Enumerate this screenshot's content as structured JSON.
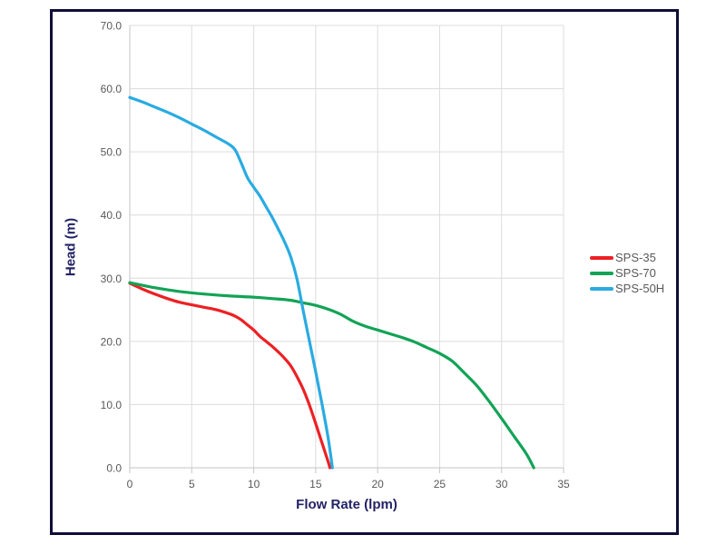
{
  "chart_data": {
    "type": "line",
    "title": "",
    "xlabel": "Flow Rate (lpm)",
    "ylabel": "Head (m)",
    "xlim": [
      0,
      35
    ],
    "ylim": [
      0,
      70
    ],
    "grid": true,
    "legend_position": "right-center",
    "x_ticks": [
      0,
      5,
      10,
      15,
      20,
      25,
      30,
      35
    ],
    "x_tick_labels": [
      "0",
      "5",
      "10",
      "15",
      "20",
      "25",
      "30",
      "35"
    ],
    "y_ticks": [
      0,
      10,
      20,
      30,
      40,
      50,
      60,
      70
    ],
    "y_tick_labels": [
      "0.0",
      "10.0",
      "20.0",
      "30.0",
      "40.0",
      "50.0",
      "60.0",
      "70.0"
    ],
    "series": [
      {
        "name": "SPS-35",
        "color": "#ed2024",
        "points": [
          [
            0,
            29.2
          ],
          [
            1,
            28.3
          ],
          [
            2,
            27.5
          ],
          [
            3,
            26.8
          ],
          [
            4,
            26.2
          ],
          [
            5,
            25.8
          ],
          [
            6,
            25.4
          ],
          [
            7,
            25.0
          ],
          [
            8,
            24.4
          ],
          [
            8.5,
            24.0
          ],
          [
            9,
            23.4
          ],
          [
            9.5,
            22.6
          ],
          [
            10,
            21.8
          ],
          [
            10.5,
            20.8
          ],
          [
            11,
            20.0
          ],
          [
            11.5,
            19.2
          ],
          [
            12,
            18.3
          ],
          [
            12.5,
            17.3
          ],
          [
            13,
            16.1
          ],
          [
            13.5,
            14.4
          ],
          [
            14,
            12.4
          ],
          [
            14.5,
            9.9
          ],
          [
            15,
            7.0
          ],
          [
            15.5,
            4.0
          ],
          [
            16,
            1.0
          ],
          [
            16.15,
            0
          ]
        ]
      },
      {
        "name": "SPS-70",
        "color": "#12a356",
        "points": [
          [
            0,
            29.3
          ],
          [
            2,
            28.5
          ],
          [
            4,
            27.9
          ],
          [
            6,
            27.5
          ],
          [
            8,
            27.2
          ],
          [
            10,
            27.0
          ],
          [
            12,
            26.7
          ],
          [
            13,
            26.5
          ],
          [
            14,
            26.1
          ],
          [
            15,
            25.7
          ],
          [
            16,
            25.1
          ],
          [
            17,
            24.3
          ],
          [
            18,
            23.2
          ],
          [
            19,
            22.4
          ],
          [
            20,
            21.8
          ],
          [
            21,
            21.2
          ],
          [
            22,
            20.6
          ],
          [
            23,
            19.9
          ],
          [
            24,
            19.0
          ],
          [
            25,
            18.1
          ],
          [
            26,
            16.9
          ],
          [
            27,
            15.0
          ],
          [
            28,
            13.0
          ],
          [
            29,
            10.5
          ],
          [
            30,
            7.8
          ],
          [
            31,
            5.0
          ],
          [
            32,
            2.2
          ],
          [
            32.6,
            0
          ]
        ]
      },
      {
        "name": "SPS-50H",
        "color": "#29abe2",
        "points": [
          [
            0,
            58.6
          ],
          [
            1,
            57.9
          ],
          [
            2,
            57.1
          ],
          [
            3,
            56.3
          ],
          [
            4,
            55.4
          ],
          [
            5,
            54.4
          ],
          [
            6,
            53.4
          ],
          [
            7,
            52.3
          ],
          [
            8,
            51.2
          ],
          [
            8.5,
            50.3
          ],
          [
            9,
            48.2
          ],
          [
            9.5,
            45.9
          ],
          [
            10,
            44.4
          ],
          [
            10.5,
            43.0
          ],
          [
            11,
            41.3
          ],
          [
            11.5,
            39.6
          ],
          [
            12,
            37.7
          ],
          [
            12.5,
            35.7
          ],
          [
            13,
            33.3
          ],
          [
            13.5,
            29.8
          ],
          [
            14,
            24.8
          ],
          [
            14.5,
            20.0
          ],
          [
            15,
            15.2
          ],
          [
            15.5,
            10.2
          ],
          [
            16,
            4.8
          ],
          [
            16.35,
            0
          ]
        ]
      }
    ],
    "style": {
      "grid_color": "#dcdcdc",
      "axis_color": "#c6c6c6",
      "tick_label_color": "#595959",
      "axis_title_color": "#232266",
      "frame_border_color": "#0e0e38",
      "background": "#ffffff",
      "line_width": 3.2
    }
  }
}
